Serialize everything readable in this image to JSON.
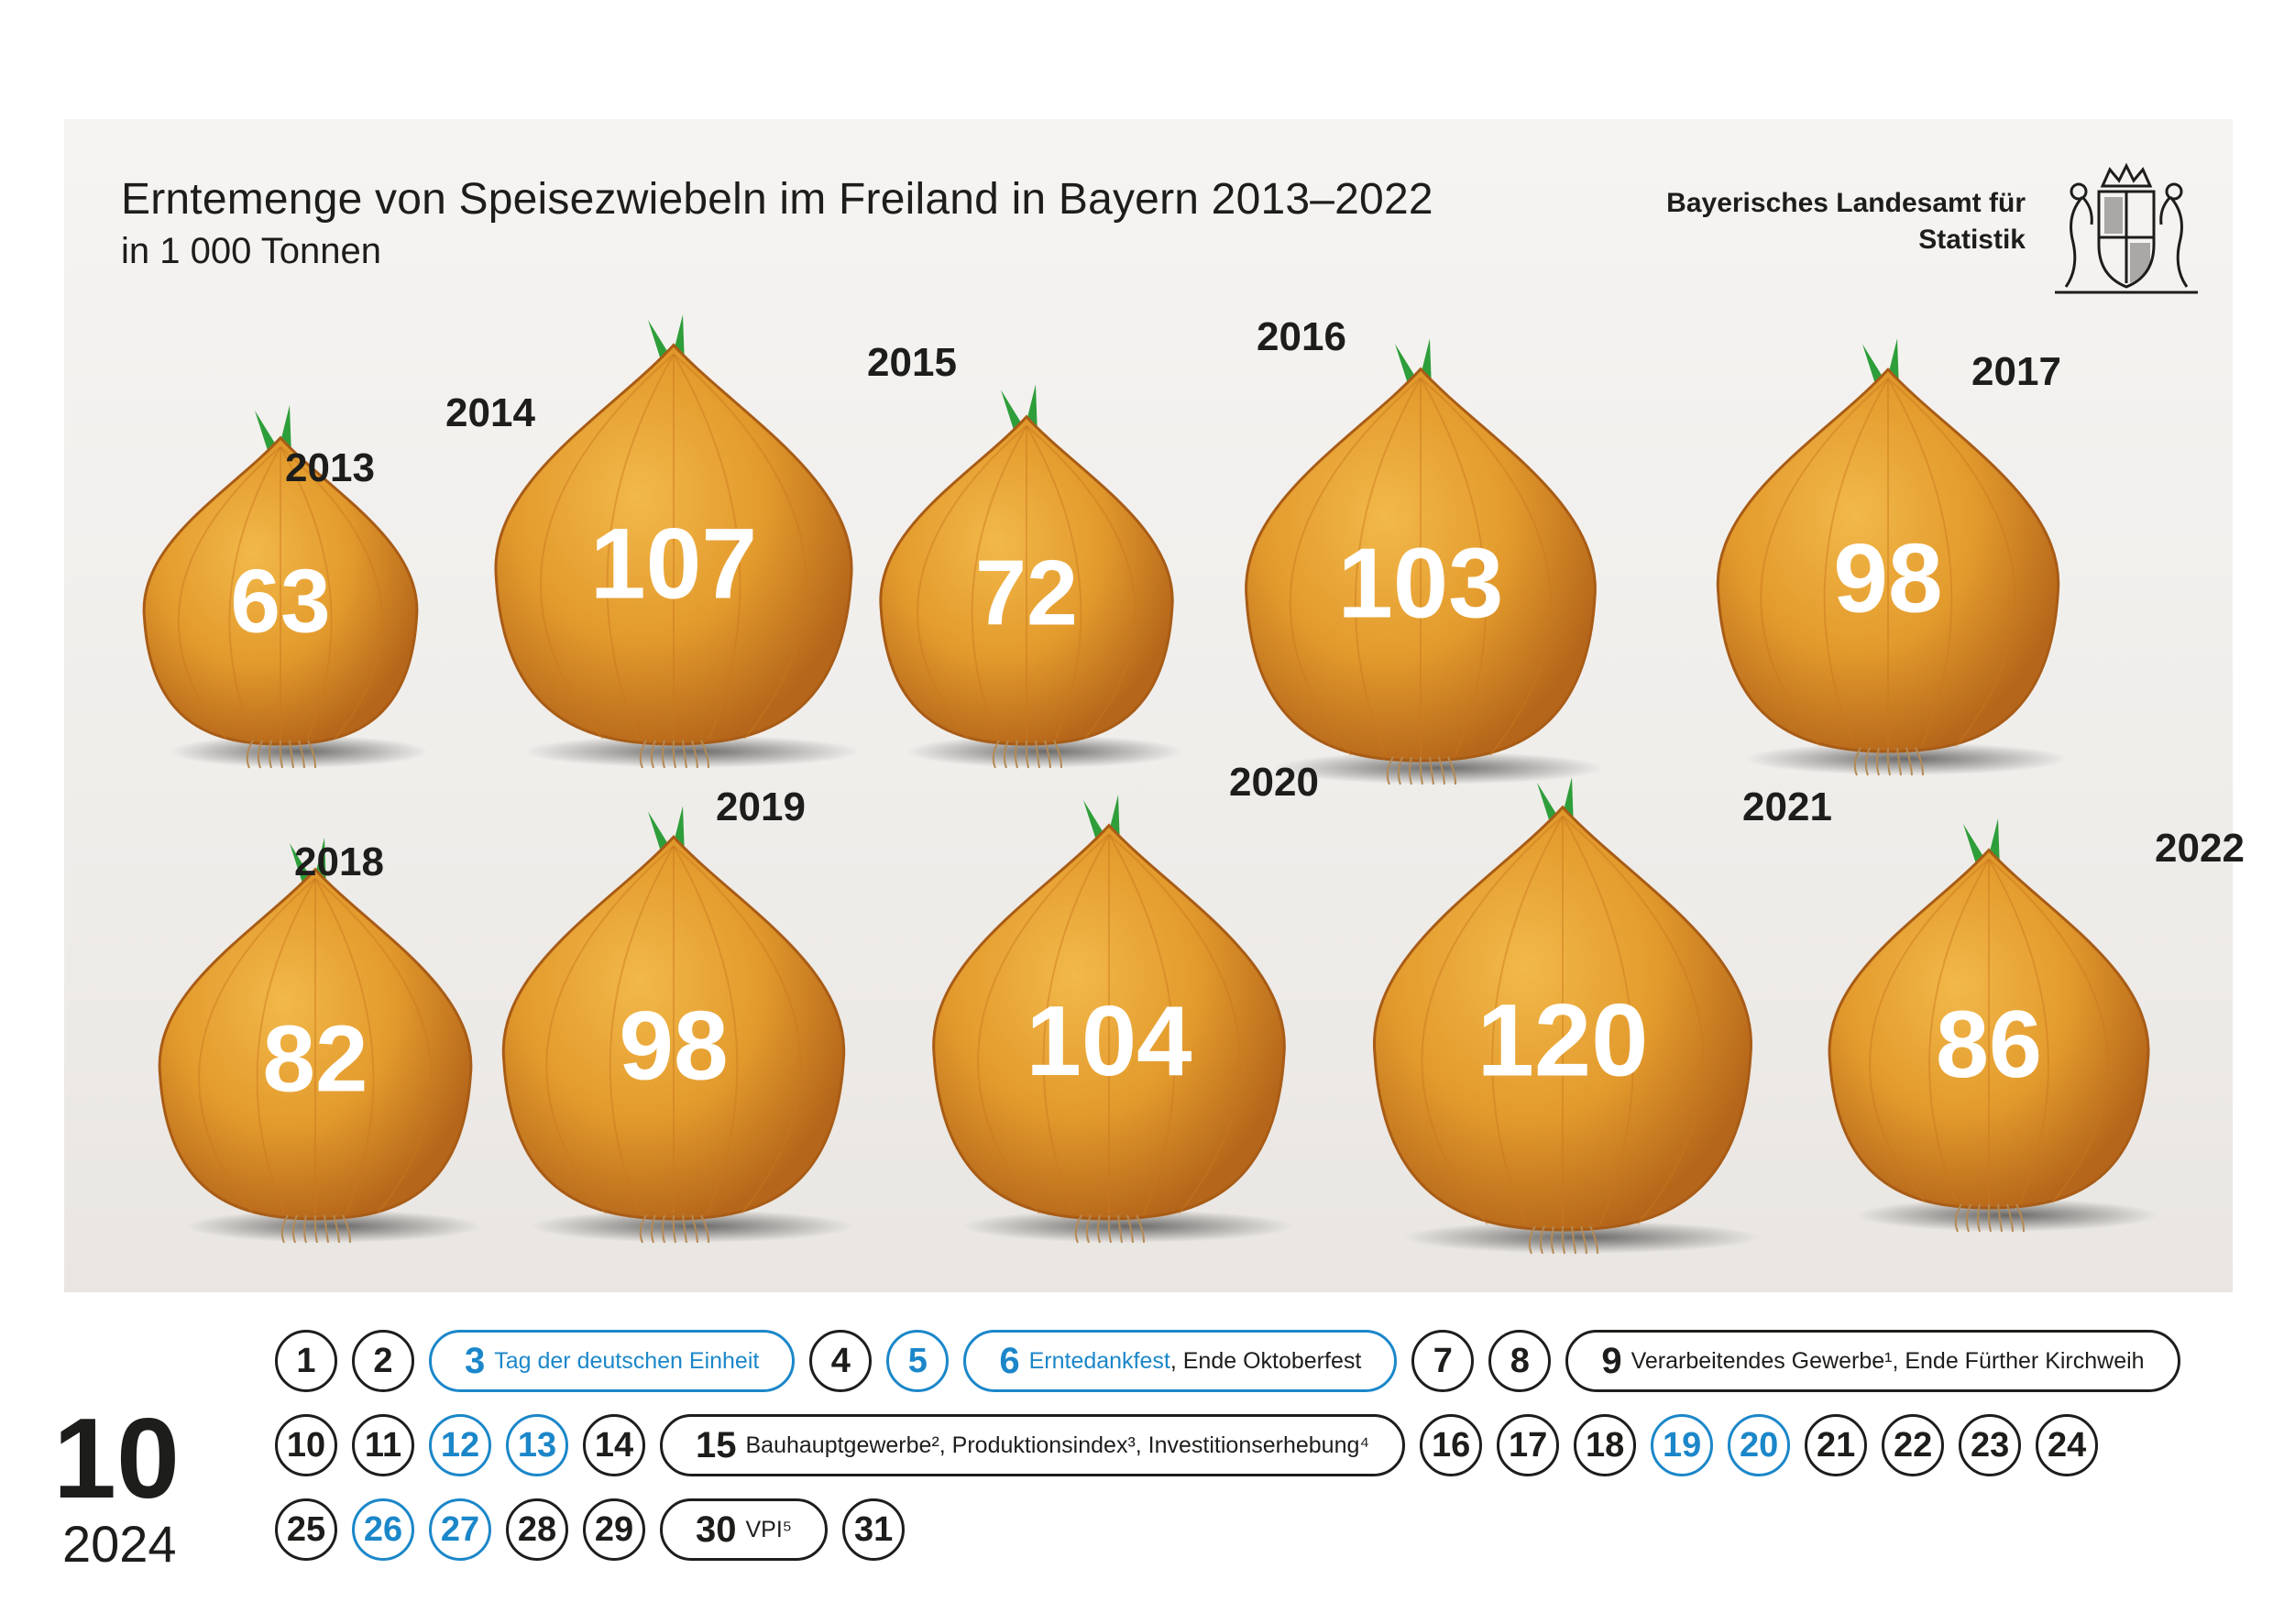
{
  "header": {
    "title": "Erntemenge von Speisezwiebeln im Freiland in Bayern 2013–2022",
    "subtitle": "in 1 000 Tonnen",
    "agency_line1": "Bayerisches Landesamt für",
    "agency_line2": "Statistik"
  },
  "chart_data": {
    "type": "bar",
    "title": "Erntemenge von Speisezwiebeln im Freiland in Bayern 2013–2022",
    "subtitle": "in 1 000 Tonnen",
    "categories": [
      "2013",
      "2014",
      "2015",
      "2016",
      "2017",
      "2018",
      "2019",
      "2020",
      "2021",
      "2022"
    ],
    "values": [
      63,
      107,
      72,
      103,
      98,
      82,
      98,
      104,
      120,
      86
    ],
    "ylabel": "in 1 000 Tonnen",
    "colors": {
      "onion_light": "#f2b84a",
      "onion_mid": "#e39a2c",
      "onion_dark": "#b5661a",
      "leaf": "#2e9e3a",
      "label": "#ffffff"
    }
  },
  "calendar": {
    "month": "10",
    "year": "2024",
    "colors": {
      "normal": "#1d1d1b",
      "highlight": "#1b87c9"
    },
    "rows": [
      [
        {
          "d": "1",
          "style": "normal"
        },
        {
          "d": "2",
          "style": "normal"
        },
        {
          "d": "3",
          "style": "blue",
          "note": "Tag der deutschen Einheit"
        },
        {
          "d": "4",
          "style": "normal"
        },
        {
          "d": "5",
          "style": "blue"
        },
        {
          "d": "6",
          "style": "blue",
          "note": "Erntedankfest",
          "note2": ", Ende Oktoberfest"
        },
        {
          "d": "7",
          "style": "normal"
        },
        {
          "d": "8",
          "style": "normal"
        },
        {
          "d": "9",
          "style": "normal",
          "note": "Verarbeitendes Gewerbe¹, Ende Fürther Kirchweih"
        }
      ],
      [
        {
          "d": "10",
          "style": "normal"
        },
        {
          "d": "11",
          "style": "normal"
        },
        {
          "d": "12",
          "style": "blue"
        },
        {
          "d": "13",
          "style": "blue"
        },
        {
          "d": "14",
          "style": "normal"
        },
        {
          "d": "15",
          "style": "normal",
          "note": "Bauhauptgewerbe², Produktionsindex³, Investitionserhebung⁴"
        },
        {
          "d": "16",
          "style": "normal"
        },
        {
          "d": "17",
          "style": "normal"
        },
        {
          "d": "18",
          "style": "normal"
        },
        {
          "d": "19",
          "style": "blue"
        },
        {
          "d": "20",
          "style": "blue"
        },
        {
          "d": "21",
          "style": "normal"
        },
        {
          "d": "22",
          "style": "normal"
        },
        {
          "d": "23",
          "style": "normal"
        },
        {
          "d": "24",
          "style": "normal"
        }
      ],
      [
        {
          "d": "25",
          "style": "normal"
        },
        {
          "d": "26",
          "style": "blue"
        },
        {
          "d": "27",
          "style": "blue"
        },
        {
          "d": "28",
          "style": "normal"
        },
        {
          "d": "29",
          "style": "normal"
        },
        {
          "d": "30",
          "style": "normal",
          "note": "VPI⁵"
        },
        {
          "d": "31",
          "style": "normal"
        }
      ]
    ]
  }
}
